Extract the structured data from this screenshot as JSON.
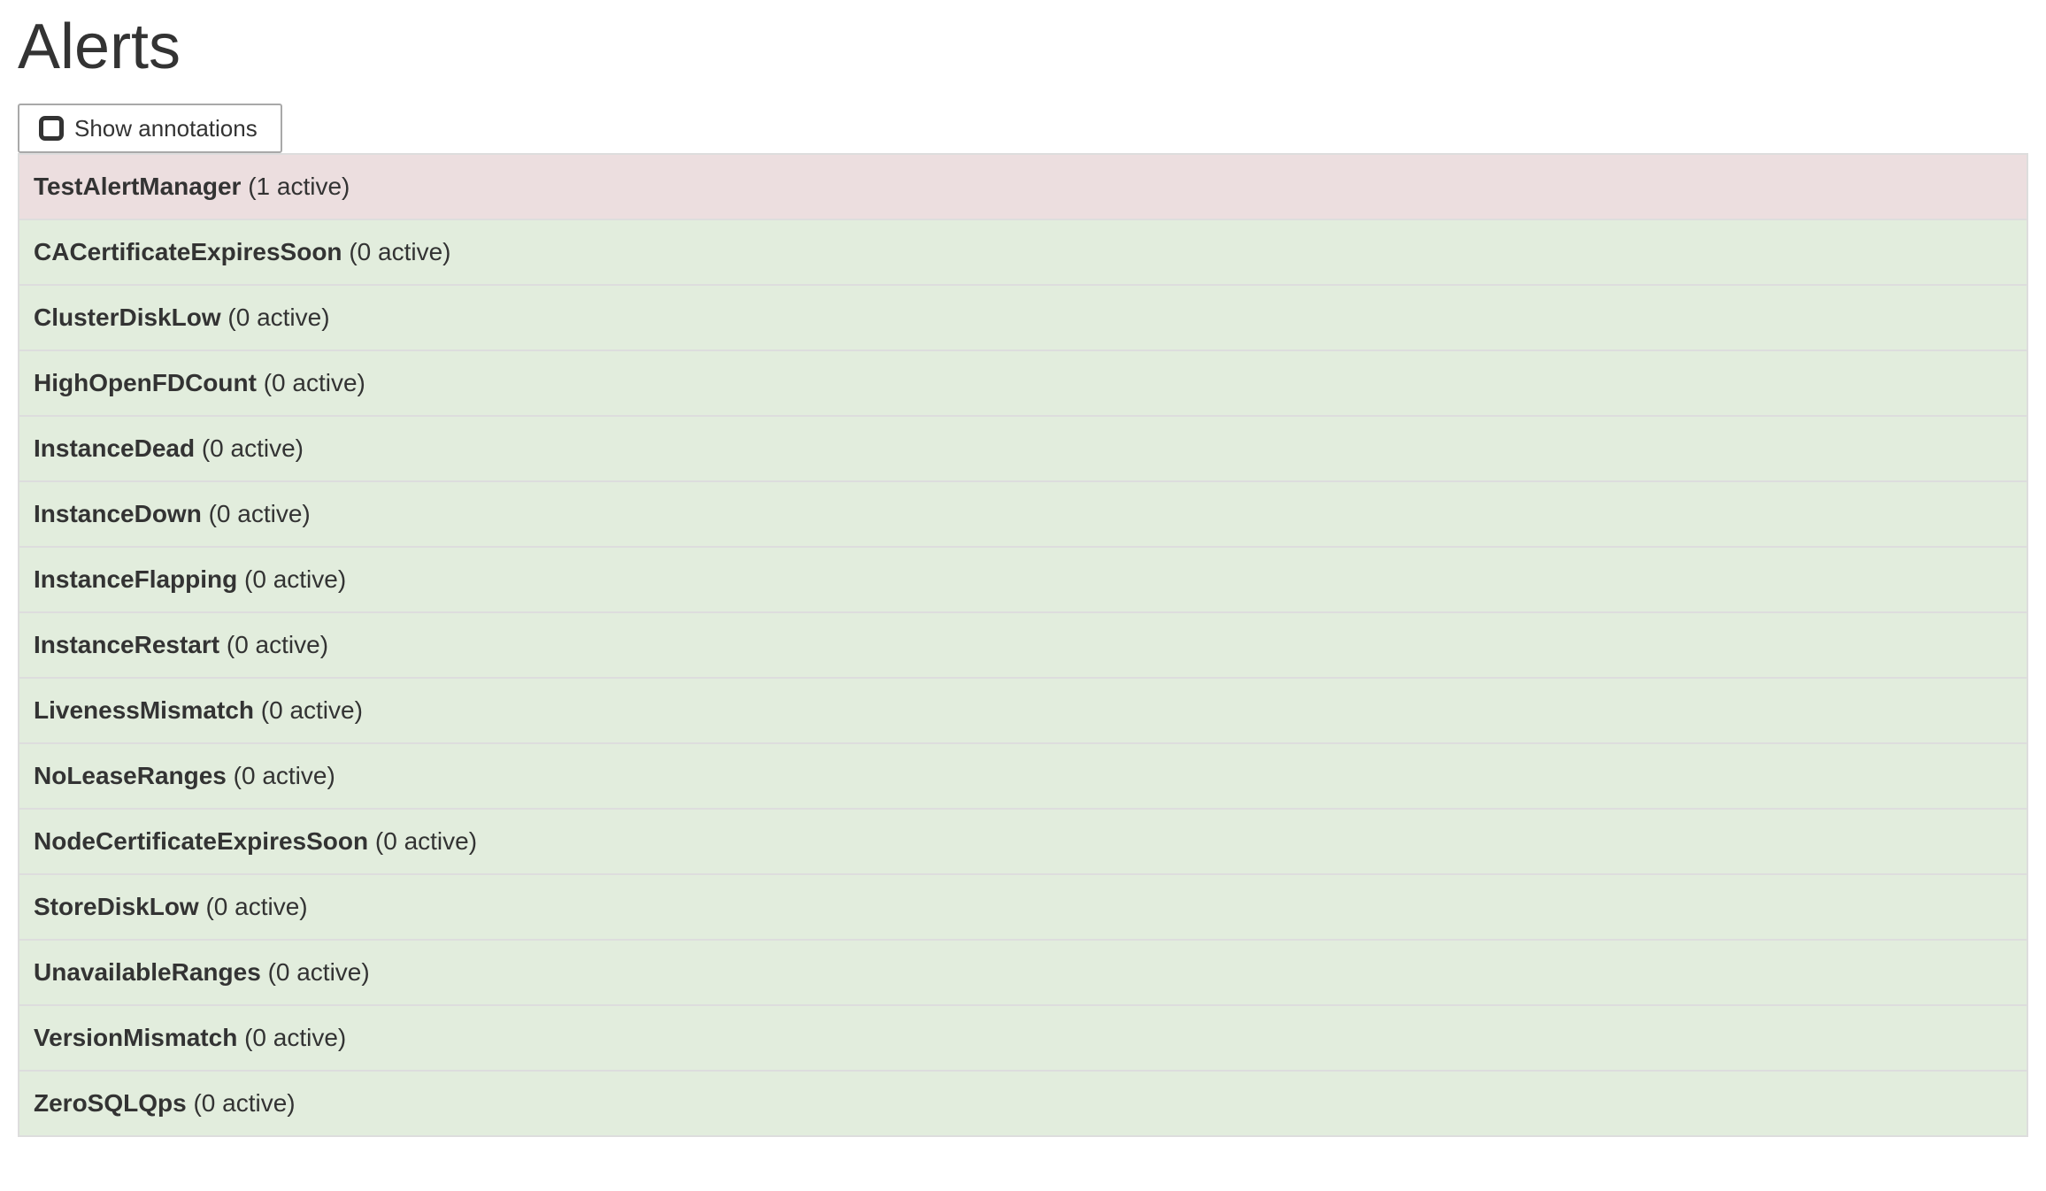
{
  "page": {
    "title": "Alerts"
  },
  "toolbar": {
    "show_annotations_label": "Show annotations",
    "checkbox_state": "unchecked"
  },
  "alerts": [
    {
      "name": "TestAlertManager",
      "count_label": "(1 active)",
      "active": 1,
      "state": "danger"
    },
    {
      "name": "CACertificateExpiresSoon",
      "count_label": "(0 active)",
      "active": 0,
      "state": "success"
    },
    {
      "name": "ClusterDiskLow",
      "count_label": "(0 active)",
      "active": 0,
      "state": "success"
    },
    {
      "name": "HighOpenFDCount",
      "count_label": "(0 active)",
      "active": 0,
      "state": "success"
    },
    {
      "name": "InstanceDead",
      "count_label": "(0 active)",
      "active": 0,
      "state": "success"
    },
    {
      "name": "InstanceDown",
      "count_label": "(0 active)",
      "active": 0,
      "state": "success"
    },
    {
      "name": "InstanceFlapping",
      "count_label": "(0 active)",
      "active": 0,
      "state": "success"
    },
    {
      "name": "InstanceRestart",
      "count_label": "(0 active)",
      "active": 0,
      "state": "success"
    },
    {
      "name": "LivenessMismatch",
      "count_label": "(0 active)",
      "active": 0,
      "state": "success"
    },
    {
      "name": "NoLeaseRanges",
      "count_label": "(0 active)",
      "active": 0,
      "state": "success"
    },
    {
      "name": "NodeCertificateExpiresSoon",
      "count_label": "(0 active)",
      "active": 0,
      "state": "success"
    },
    {
      "name": "StoreDiskLow",
      "count_label": "(0 active)",
      "active": 0,
      "state": "success"
    },
    {
      "name": "UnavailableRanges",
      "count_label": "(0 active)",
      "active": 0,
      "state": "success"
    },
    {
      "name": "VersionMismatch",
      "count_label": "(0 active)",
      "active": 0,
      "state": "success"
    },
    {
      "name": "ZeroSQLQps",
      "count_label": "(0 active)",
      "active": 0,
      "state": "success"
    }
  ],
  "colors": {
    "danger_bg": "#ecdedf",
    "success_bg": "#e2eddd",
    "table_border": "#dddddd",
    "button_border": "#a9a9a9",
    "text": "#333333"
  }
}
